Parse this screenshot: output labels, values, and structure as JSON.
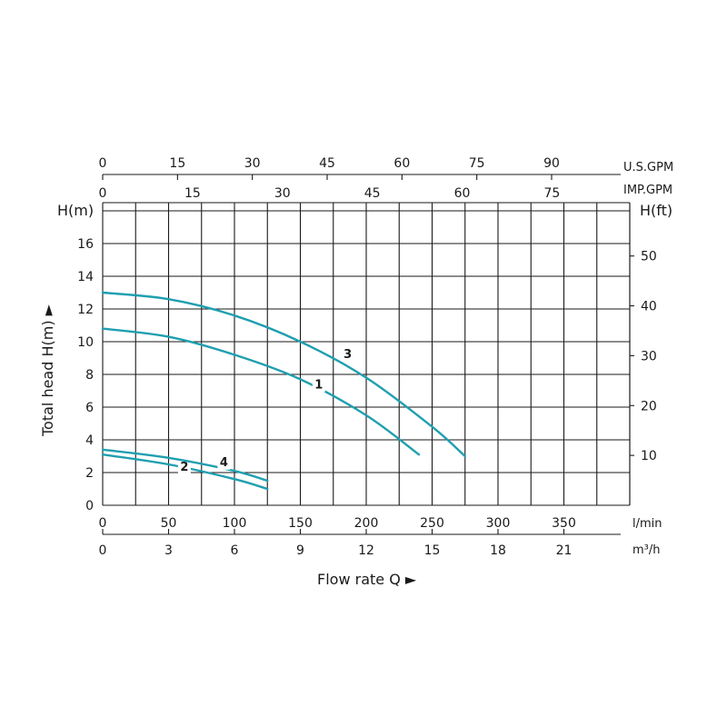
{
  "chart_data": {
    "type": "line",
    "x_primary": {
      "unit": "l/min",
      "range": [
        0,
        400
      ],
      "ticks": [
        0,
        50,
        100,
        150,
        200,
        250,
        300,
        350
      ]
    },
    "x_secondary": {
      "unit": "m³/h",
      "ticks": [
        0,
        3,
        6,
        9,
        12,
        15,
        18,
        21
      ]
    },
    "x_top_us": {
      "unit": "U.S.GPM",
      "ticks": [
        0,
        15,
        30,
        45,
        60,
        75,
        90
      ]
    },
    "x_top_imp": {
      "unit": "IMP.GPM",
      "ticks": [
        0,
        15,
        30,
        45,
        60,
        75
      ]
    },
    "y_left": {
      "unit": "H(m)",
      "range": [
        0,
        18.5
      ],
      "ticks": [
        0,
        2,
        4,
        6,
        8,
        10,
        12,
        14,
        16
      ]
    },
    "y_right": {
      "unit": "H(ft)",
      "ticks": [
        10,
        20,
        30,
        40,
        50
      ]
    },
    "xlabel": "Flow rate Q ►",
    "ylabel": "Total head H(m) ►",
    "grid": true,
    "series": [
      {
        "name": "1",
        "x": [
          0,
          50,
          100,
          150,
          200,
          240
        ],
        "y": [
          10.8,
          10.3,
          9.2,
          7.7,
          5.5,
          3.1
        ],
        "label_at": [
          164,
          7.15
        ]
      },
      {
        "name": "2",
        "x": [
          0,
          50,
          100,
          125
        ],
        "y": [
          3.1,
          2.5,
          1.6,
          1.0
        ],
        "label_at": [
          62,
          2.1
        ]
      },
      {
        "name": "3",
        "x": [
          0,
          50,
          100,
          150,
          200,
          250,
          275
        ],
        "y": [
          13.0,
          12.6,
          11.6,
          10.0,
          7.8,
          4.8,
          3.0
        ],
        "label_at": [
          186,
          9.0
        ]
      },
      {
        "name": "4",
        "x": [
          0,
          50,
          100,
          125
        ],
        "y": [
          3.4,
          2.9,
          2.1,
          1.5
        ],
        "label_at": [
          92,
          2.4
        ]
      }
    ],
    "colors": {
      "curve": "#1f9fb0",
      "grid": "#1a1a1a"
    }
  }
}
